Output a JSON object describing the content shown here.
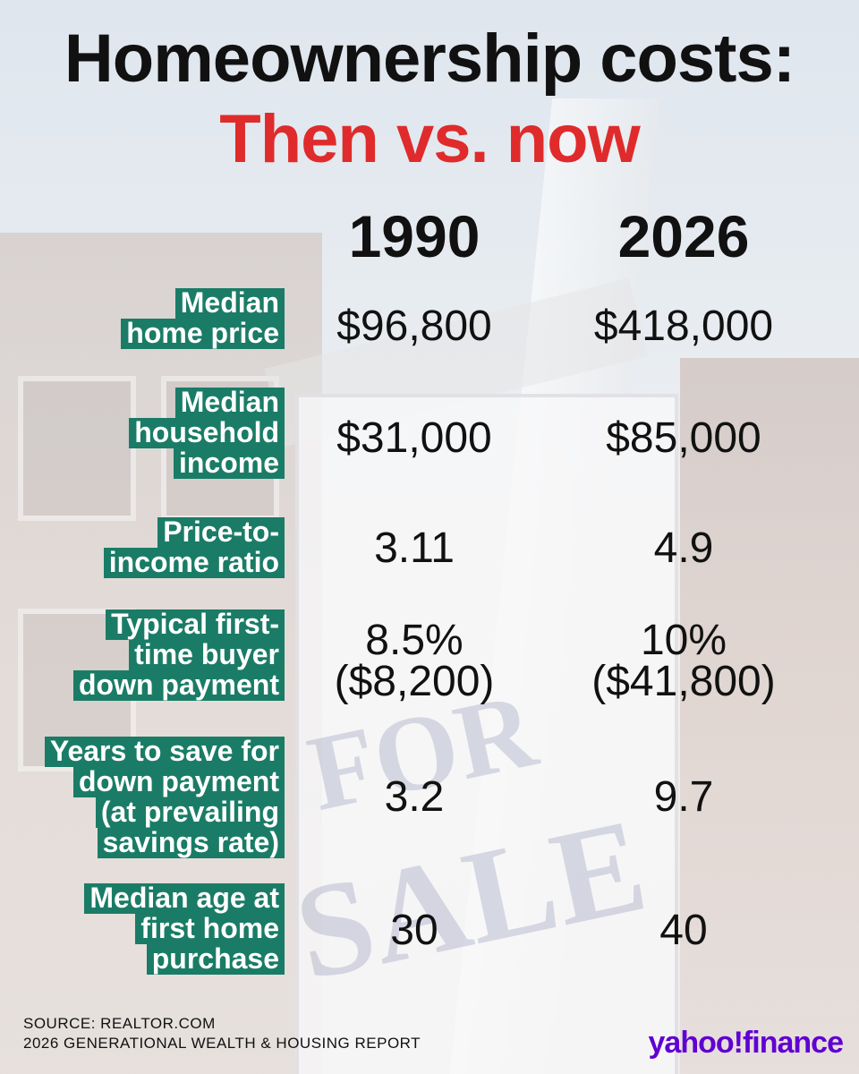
{
  "title": {
    "line1": "Homeownership costs:",
    "line2": "Then vs. now",
    "line2_color": "#df2b2b"
  },
  "columns": [
    "1990",
    "2026"
  ],
  "rows": [
    {
      "label": [
        "Median",
        "home price"
      ],
      "values": [
        [
          "$96,800"
        ],
        [
          "$418,000"
        ]
      ]
    },
    {
      "label": [
        "Median",
        "household",
        "income"
      ],
      "values": [
        [
          "$31,000"
        ],
        [
          "$85,000"
        ]
      ]
    },
    {
      "label": [
        "Price-to-",
        "income ratio"
      ],
      "values": [
        [
          "3.11"
        ],
        [
          "4.9"
        ]
      ]
    },
    {
      "label": [
        "Typical first-",
        "time buyer",
        "down payment"
      ],
      "values": [
        [
          "8.5%",
          "($8,200)"
        ],
        [
          "10%",
          "($41,800)"
        ]
      ]
    },
    {
      "label": [
        "Years to save for",
        "down payment",
        "(at prevailing",
        "savings rate)"
      ],
      "values": [
        [
          "3.2"
        ],
        [
          "9.7"
        ]
      ]
    },
    {
      "label": [
        "Median age at",
        "first home",
        "purchase"
      ],
      "values": [
        [
          "30"
        ],
        [
          "40"
        ]
      ]
    }
  ],
  "label_bg_color": "#1a7c66",
  "source": {
    "line1": "SOURCE: REALTOR.COM",
    "line2": "2026 GENERATIONAL WEALTH & HOUSING REPORT"
  },
  "logo": {
    "text": "yahoo!finance",
    "color": "#5f01d1"
  },
  "background": {
    "sign_text": [
      "FOR",
      "SALE"
    ]
  }
}
